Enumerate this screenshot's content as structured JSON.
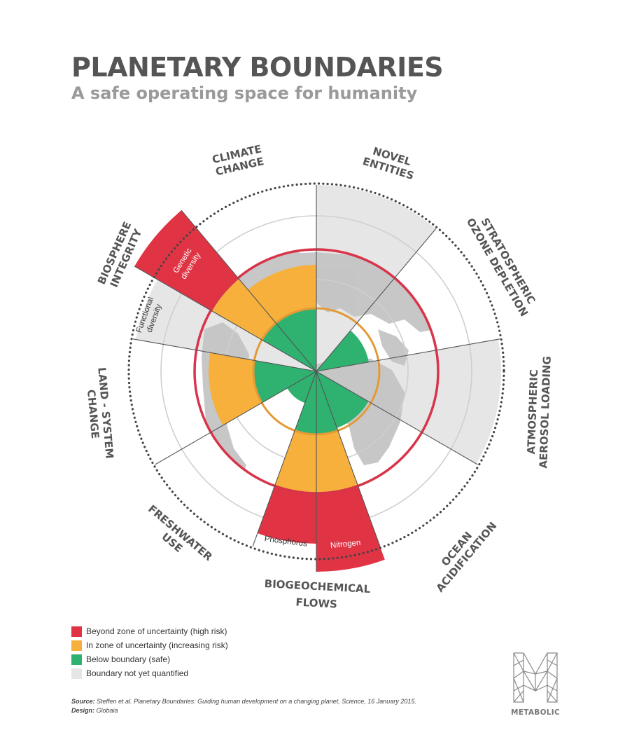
{
  "header": {
    "title": "PLANETARY BOUNDARIES",
    "subtitle": "A safe operating space for humanity"
  },
  "colors": {
    "high_risk": "#e03444",
    "increasing_risk": "#f7b03c",
    "safe": "#2fb170",
    "not_quantified": "#e6e6e6",
    "boundary_ring": "#d8344a",
    "inner_ring": "#e39a36",
    "map": "#c4c4c4"
  },
  "categories": [
    {
      "id": "climate",
      "lines": [
        "CLIMATE",
        "CHANGE"
      ],
      "status": "increasing_risk"
    },
    {
      "id": "novel",
      "lines": [
        "NOVEL",
        "ENTITIES"
      ],
      "status": "not_quantified"
    },
    {
      "id": "ozone",
      "lines": [
        "STRATOSPHERIC",
        "OZONE DEPLETION"
      ],
      "status": "safe"
    },
    {
      "id": "aerosol",
      "lines": [
        "ATMOSPHERIC",
        "AEROSOL LOADING"
      ],
      "status": "not_quantified"
    },
    {
      "id": "ocean",
      "lines": [
        "OCEAN",
        "ACIDIFICATION"
      ],
      "status": "safe"
    },
    {
      "id": "biogeo",
      "lines": [
        "BIOGEOCHEMICAL",
        "FLOWS"
      ],
      "status": "high_risk",
      "sub": [
        {
          "label": "Phosphorus",
          "status": "high_risk"
        },
        {
          "label": "Nitrogen",
          "status": "high_risk"
        }
      ]
    },
    {
      "id": "freshwater",
      "lines": [
        "FRESHWATER",
        "USE"
      ],
      "status": "safe"
    },
    {
      "id": "land",
      "lines": [
        "LAND - SYSTEM",
        "CHANGE"
      ],
      "status": "increasing_risk"
    },
    {
      "id": "biosphere",
      "lines": [
        "BIOSPHERE",
        "INTEGRITY"
      ],
      "status": "high_risk",
      "sub": [
        {
          "label": "Functional diversity",
          "lines": [
            "Functional",
            "diversity"
          ],
          "status": "not_quantified"
        },
        {
          "label": "Genetic diversity",
          "lines": [
            "Genetic",
            "diversity"
          ],
          "status": "high_risk"
        }
      ]
    }
  ],
  "legend": [
    {
      "label": "Beyond zone of uncertainty (high risk)",
      "color": "#e03444"
    },
    {
      "label": "In zone of uncertainty (increasing risk)",
      "color": "#f7b03c"
    },
    {
      "label": "Below boundary (safe)",
      "color": "#2fb170"
    },
    {
      "label": "Boundary not yet quantified",
      "color": "#e6e6e6"
    }
  ],
  "source": {
    "source_label": "Source:",
    "source_text": "Steffen et al. Planetary Boundaries: Guiding human development on a changing planet, Science, 16 January 2015.",
    "design_label": "Design:",
    "design_text": "Globaia"
  },
  "logo": {
    "word": "METABOLIC",
    "icon": "metabolic-m-icon"
  }
}
